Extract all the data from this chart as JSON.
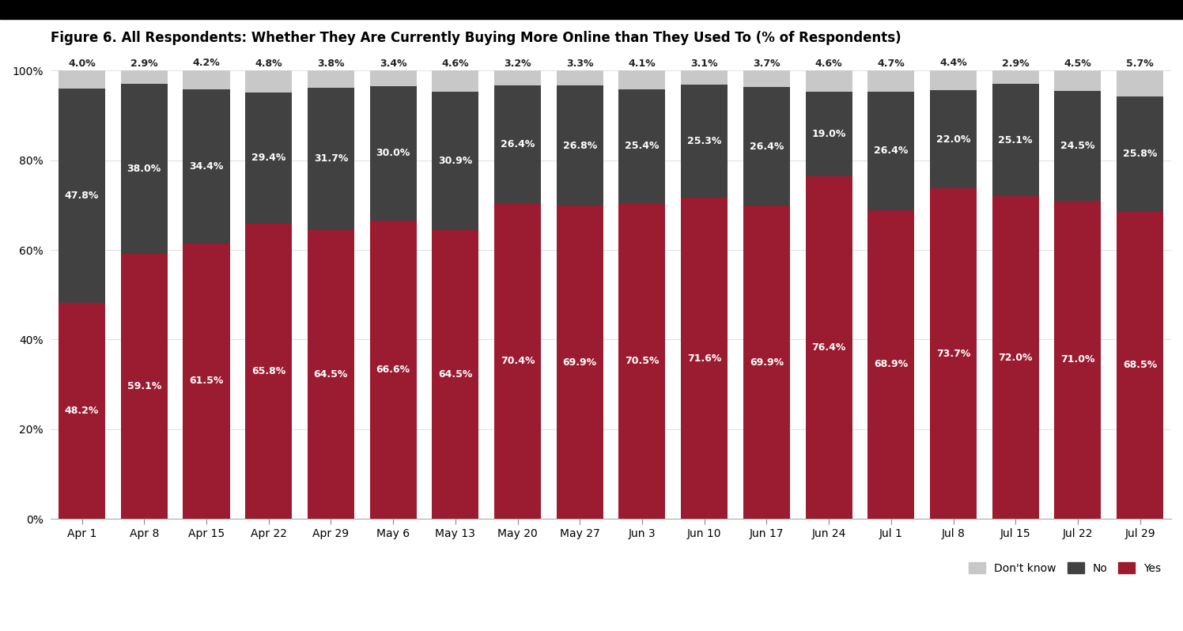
{
  "title": "Figure 6. All Respondents: Whether They Are Currently Buying More Online than They Used To (% of Respondents)",
  "categories": [
    "Apr 1",
    "Apr 8",
    "Apr 15",
    "Apr 22",
    "Apr 29",
    "May 6",
    "May 13",
    "May 20",
    "May 27",
    "Jun 3",
    "Jun 10",
    "Jun 17",
    "Jun 24",
    "Jul 1",
    "Jul 8",
    "Jul 15",
    "Jul 22",
    "Jul 29"
  ],
  "yes": [
    48.2,
    59.1,
    61.5,
    65.8,
    64.5,
    66.6,
    64.5,
    70.4,
    69.9,
    70.5,
    71.6,
    69.9,
    76.4,
    68.9,
    73.7,
    72.0,
    71.0,
    68.5
  ],
  "no": [
    47.8,
    38.0,
    34.4,
    29.4,
    31.7,
    30.0,
    30.9,
    26.4,
    26.8,
    25.4,
    25.3,
    26.4,
    19.0,
    26.4,
    22.0,
    25.1,
    24.5,
    25.8
  ],
  "dk": [
    4.0,
    2.9,
    4.2,
    4.8,
    3.8,
    3.4,
    4.6,
    3.2,
    3.3,
    4.1,
    3.1,
    3.7,
    4.6,
    4.7,
    4.4,
    2.9,
    4.5,
    5.7
  ],
  "yes_color": "#9b1b30",
  "no_color": "#414141",
  "dk_color": "#c8c8c8",
  "background_color": "#ffffff",
  "ylim": [
    0,
    100
  ],
  "title_fontsize": 12,
  "tick_fontsize": 10,
  "label_fontsize": 9
}
